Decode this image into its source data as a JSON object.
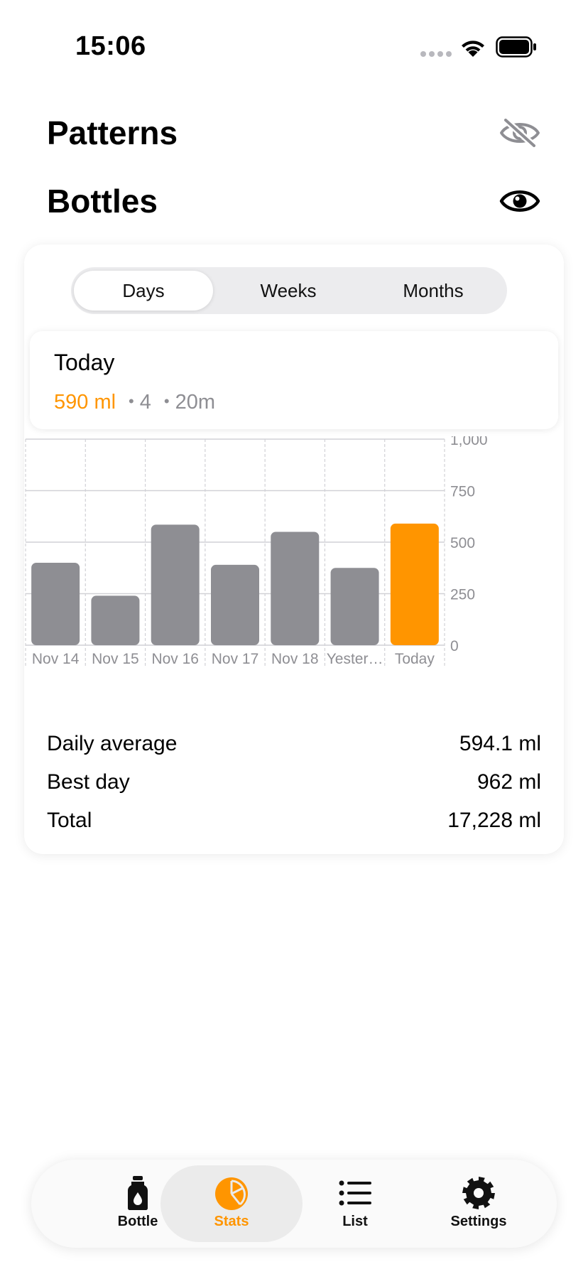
{
  "status_bar": {
    "time": "15:06"
  },
  "sections": {
    "patterns": {
      "title": "Patterns",
      "icon": "eye-slash-icon"
    },
    "bottles": {
      "title": "Bottles",
      "icon": "eye-icon"
    }
  },
  "segmented": {
    "options": [
      "Days",
      "Weeks",
      "Months"
    ],
    "selected": "Days"
  },
  "today": {
    "label": "Today",
    "amount": "590 ml",
    "count": "4",
    "duration": "20m"
  },
  "colors": {
    "accent": "#ff9500",
    "bar": "#8e8e93",
    "grid": "#d1d1d6"
  },
  "chart_data": {
    "type": "bar",
    "categories": [
      "Nov 14",
      "Nov 15",
      "Nov 16",
      "Nov 17",
      "Nov 18",
      "Yester…",
      "Today"
    ],
    "values": [
      400,
      240,
      585,
      390,
      550,
      375,
      590
    ],
    "highlight_index": 6,
    "y_ticks": [
      "1,000",
      "750",
      "500",
      "250",
      "0"
    ],
    "ylim": [
      0,
      1000
    ],
    "y_axis_position": "right",
    "grid": true
  },
  "summary": [
    {
      "label": "Daily average",
      "value": "594.1 ml"
    },
    {
      "label": "Best day",
      "value": "962 ml"
    },
    {
      "label": "Total",
      "value": "17,228 ml"
    }
  ],
  "tab_bar": [
    {
      "label": "Bottle",
      "icon": "bottle-icon"
    },
    {
      "label": "Stats",
      "icon": "pie-chart-icon",
      "active": true
    },
    {
      "label": "List",
      "icon": "list-icon"
    },
    {
      "label": "Settings",
      "icon": "gear-icon"
    }
  ]
}
